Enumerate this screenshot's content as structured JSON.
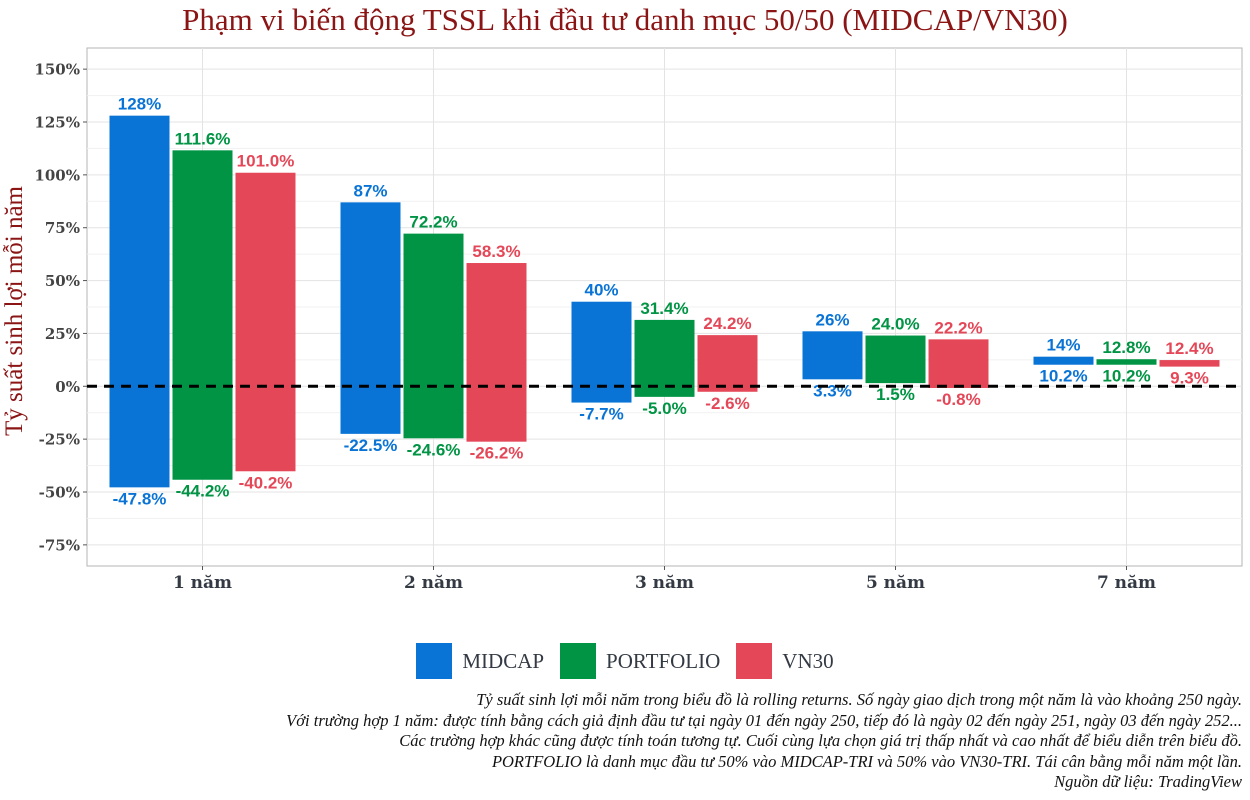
{
  "chart_data": {
    "type": "bar",
    "subtype": "floating-range",
    "title": "Phạm vi biến động TSSL khi đầu tư danh mục 50/50 (MIDCAP/VN30)",
    "ylabel": "Tỷ suất sinh lợi mỗi năm",
    "xlabel": "",
    "ylim": [
      -85,
      160
    ],
    "yticks": [
      150,
      125,
      100,
      75,
      50,
      25,
      0,
      -25,
      -50,
      -75
    ],
    "ytick_labels": [
      "150%",
      "125%",
      "100%",
      "75%",
      "50%",
      "25%",
      "0%",
      "-25%",
      "-50%",
      "-75%"
    ],
    "categories": [
      "1 năm",
      "2 năm",
      "3 năm",
      "5 năm",
      "7 năm"
    ],
    "series": [
      {
        "name": "MIDCAP",
        "color": "#0a74d6",
        "high": [
          128,
          87,
          40,
          26,
          14
        ],
        "low": [
          -47.8,
          -22.5,
          -7.7,
          3.3,
          10.2
        ],
        "high_labels": [
          "128%",
          "87%",
          "40%",
          "26%",
          "14%"
        ],
        "low_labels": [
          "-47.8%",
          "-22.5%",
          "-7.7%",
          "3.3%",
          "10.2%"
        ]
      },
      {
        "name": "PORTFOLIO",
        "color": "#009444",
        "high": [
          111.6,
          72.2,
          31.4,
          24.0,
          12.8
        ],
        "low": [
          -44.2,
          -24.6,
          -5.0,
          1.5,
          10.2
        ],
        "high_labels": [
          "111.6%",
          "72.2%",
          "31.4%",
          "24.0%",
          "12.8%"
        ],
        "low_labels": [
          "-44.2%",
          "-24.6%",
          "-5.0%",
          "1.5%",
          "10.2%"
        ]
      },
      {
        "name": "VN30",
        "color": "#e44858",
        "high": [
          101.0,
          58.3,
          24.2,
          22.2,
          12.4
        ],
        "low": [
          -40.2,
          -26.2,
          -2.6,
          -0.8,
          9.3
        ],
        "high_labels": [
          "101.0%",
          "58.3%",
          "24.2%",
          "22.2%",
          "12.4%"
        ],
        "low_labels": [
          "-40.2%",
          "-26.2%",
          "-2.6%",
          "-0.8%",
          "9.3%"
        ]
      }
    ],
    "reference_line": {
      "value": 0,
      "style": "dashed"
    },
    "grid": true,
    "legend_position": "bottom"
  },
  "notes": [
    "Tỷ suất sinh lợi mỗi năm trong biểu đồ là rolling returns. Số ngày giao dịch trong một năm là vào khoảng 250 ngày.",
    "Với trường hợp 1 năm: được tính bằng cách giả định đầu tư tại ngày 01 đến ngày 250, tiếp đó là ngày 02 đến ngày 251, ngày 03 đến ngày 252...",
    "Các trường hợp khác cũng được tính toán tương tự. Cuối cùng lựa chọn giá trị thấp nhất và cao nhất để biểu diễn trên biểu đồ.",
    "PORTFOLIO là danh mục đầu tư 50% vào MIDCAP-TRI và 50% vào VN30-TRI. Tái cân bằng mỗi năm một lần.",
    "Nguồn dữ liệu: TradingView"
  ]
}
